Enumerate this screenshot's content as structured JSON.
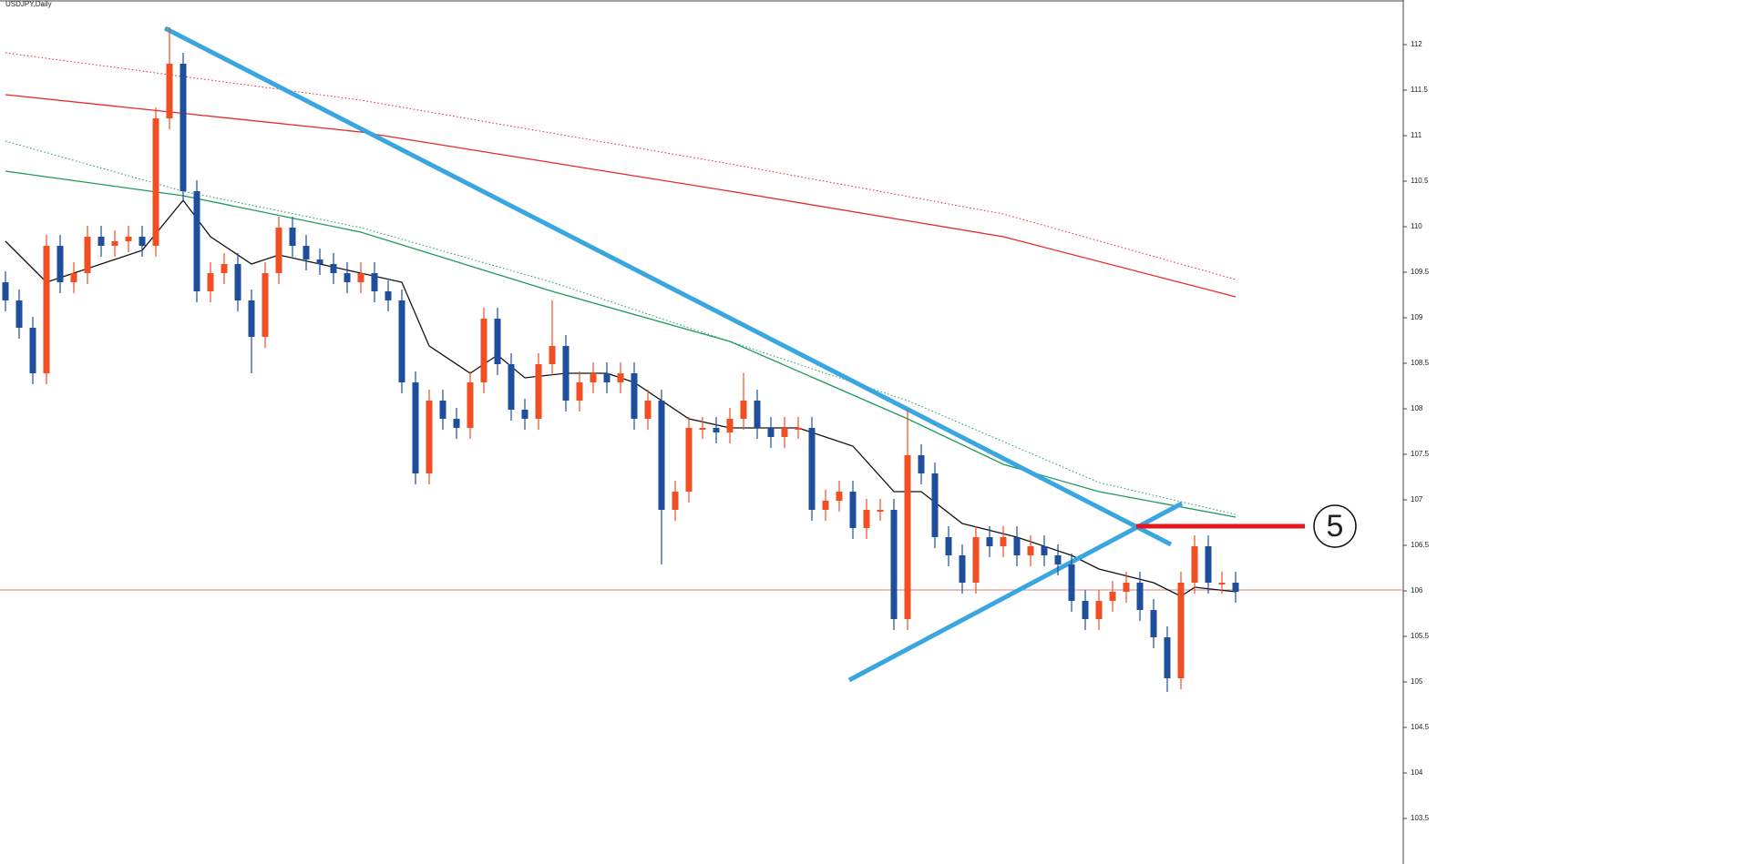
{
  "chart_data": {
    "type": "candlestick",
    "title": "USDJPY,Daily",
    "ylim": [
      103.0,
      112.49
    ],
    "yticks": [
      103.5,
      104,
      104.5,
      105,
      105.5,
      106,
      106.5,
      107,
      107.5,
      108,
      108.5,
      109,
      109.5,
      110,
      110.5,
      111,
      111.5,
      112
    ],
    "up_color": "#f04e23",
    "down_color": "#1f4e9c",
    "open": [
      109.39,
      109.19,
      108.89,
      108.39,
      109.79,
      109.39,
      109.49,
      109.89,
      109.79,
      109.84,
      109.89,
      109.79,
      111.19,
      111.79,
      110.39,
      109.29,
      109.49,
      109.59,
      109.19,
      108.79,
      109.49,
      109.99,
      109.79,
      109.64,
      109.59,
      109.49,
      109.39,
      109.49,
      109.29,
      109.19,
      108.29,
      107.29,
      108.09,
      107.89,
      107.79,
      108.29,
      108.99,
      108.49,
      107.99,
      107.89,
      108.49,
      108.69,
      108.09,
      108.29,
      108.39,
      108.29,
      108.39,
      107.89,
      108.09,
      106.89,
      107.09,
      107.79,
      107.79,
      107.74,
      107.89,
      108.09,
      107.79,
      107.69,
      107.79,
      107.79,
      106.89,
      106.99,
      107.09,
      106.69,
      106.89,
      106.89,
      105.69,
      107.49,
      107.29,
      106.59,
      106.39,
      106.09,
      106.59,
      106.49,
      106.59,
      106.39,
      106.49,
      106.39,
      106.29,
      105.89,
      105.69,
      105.89,
      105.99,
      106.09,
      105.79,
      105.49,
      105.04,
      106.09,
      106.49,
      106.09,
      106.09
    ],
    "high": [
      109.51,
      109.31,
      109.01,
      109.91,
      109.91,
      109.61,
      110.01,
      110.01,
      109.96,
      110.01,
      110.01,
      111.31,
      112.19,
      111.91,
      110.51,
      109.61,
      109.71,
      109.71,
      109.31,
      109.61,
      110.11,
      110.11,
      109.91,
      109.76,
      109.71,
      109.61,
      109.61,
      109.61,
      109.41,
      109.31,
      108.41,
      108.21,
      108.21,
      108.01,
      108.41,
      109.11,
      109.11,
      108.61,
      108.11,
      108.61,
      109.19,
      108.81,
      108.41,
      108.51,
      108.51,
      108.51,
      108.51,
      108.21,
      108.21,
      107.21,
      107.91,
      107.91,
      107.91,
      108.01,
      108.39,
      108.21,
      107.91,
      107.91,
      107.91,
      107.91,
      107.11,
      107.21,
      107.21,
      107.01,
      107.01,
      107.01,
      107.99,
      107.61,
      107.41,
      106.71,
      106.51,
      106.71,
      106.71,
      106.71,
      106.71,
      106.61,
      106.61,
      106.51,
      106.41,
      106.01,
      106.01,
      106.11,
      106.21,
      106.21,
      105.91,
      105.61,
      106.21,
      106.61,
      106.61,
      106.21,
      106.21
    ],
    "low": [
      109.07,
      108.77,
      108.27,
      108.27,
      109.27,
      109.27,
      109.37,
      109.67,
      109.67,
      109.72,
      109.67,
      109.67,
      111.07,
      110.27,
      109.17,
      109.17,
      109.37,
      109.07,
      108.39,
      108.67,
      109.37,
      109.67,
      109.52,
      109.47,
      109.37,
      109.27,
      109.27,
      109.17,
      109.07,
      108.17,
      107.17,
      107.17,
      107.77,
      107.67,
      107.67,
      108.17,
      108.37,
      107.87,
      107.77,
      107.77,
      108.37,
      107.97,
      107.97,
      108.17,
      108.17,
      108.17,
      107.77,
      107.77,
      106.29,
      106.77,
      106.97,
      107.67,
      107.62,
      107.62,
      107.77,
      107.67,
      107.57,
      107.57,
      107.67,
      106.77,
      106.77,
      106.87,
      106.57,
      106.57,
      106.77,
      105.57,
      105.57,
      107.17,
      106.47,
      106.27,
      105.97,
      105.97,
      106.37,
      106.37,
      106.27,
      106.27,
      106.27,
      106.17,
      105.77,
      105.57,
      105.57,
      105.77,
      105.87,
      105.67,
      105.37,
      104.89,
      104.92,
      105.97,
      105.97,
      105.97,
      105.87
    ],
    "close": [
      109.19,
      108.89,
      108.39,
      109.79,
      109.39,
      109.49,
      109.89,
      109.79,
      109.84,
      109.89,
      109.79,
      111.19,
      111.79,
      110.39,
      109.29,
      109.49,
      109.59,
      109.19,
      108.79,
      109.49,
      109.99,
      109.79,
      109.64,
      109.59,
      109.49,
      109.39,
      109.49,
      109.29,
      109.19,
      108.29,
      107.29,
      108.09,
      107.89,
      107.79,
      108.29,
      108.99,
      108.49,
      107.99,
      107.89,
      108.49,
      108.69,
      108.09,
      108.29,
      108.39,
      108.29,
      108.39,
      107.89,
      108.09,
      106.89,
      107.09,
      107.79,
      107.79,
      107.74,
      107.89,
      108.09,
      107.79,
      107.69,
      107.79,
      107.79,
      106.89,
      106.99,
      107.09,
      106.69,
      106.89,
      106.89,
      105.69,
      107.49,
      107.29,
      106.59,
      106.39,
      106.09,
      106.59,
      106.49,
      106.59,
      106.39,
      106.49,
      106.39,
      106.29,
      105.89,
      105.69,
      105.89,
      105.99,
      106.09,
      105.79,
      105.49,
      105.04,
      106.09,
      106.49,
      106.09,
      106.09,
      105.99
    ],
    "lines": [
      {
        "color": "#e8262b",
        "style": "dotted",
        "x": [
          0,
          26,
          53,
          73,
          90
        ],
        "values": [
          111.91,
          111.39,
          110.69,
          110.14,
          109.42
        ]
      },
      {
        "color": "#e8262b",
        "style": "solid",
        "x": [
          0,
          26,
          53,
          73,
          90
        ],
        "values": [
          111.45,
          111.04,
          110.39,
          109.89,
          109.23
        ]
      },
      {
        "color": "#1a9a5a",
        "style": "dotted",
        "x": [
          0,
          13,
          26,
          40,
          53,
          66,
          80,
          90
        ],
        "values": [
          110.94,
          110.39,
          109.99,
          109.39,
          108.74,
          108.09,
          107.19,
          106.84
        ]
      },
      {
        "color": "#1a9a5a",
        "style": "solid",
        "x": [
          0,
          13,
          26,
          40,
          53,
          66,
          73,
          80,
          90
        ],
        "values": [
          110.61,
          110.34,
          109.94,
          109.29,
          108.74,
          107.89,
          107.39,
          107.09,
          106.81
        ]
      },
      {
        "color": "#111111",
        "style": "solid",
        "x": [
          0,
          3,
          6,
          10,
          13,
          15,
          18,
          20,
          23,
          26,
          29,
          31,
          34,
          36,
          38,
          41,
          44,
          46,
          50,
          53,
          58,
          62,
          65,
          67,
          70,
          74,
          78,
          80,
          84,
          86,
          87,
          90
        ],
        "values": [
          109.84,
          109.39,
          109.54,
          109.74,
          110.29,
          109.89,
          109.59,
          109.69,
          109.59,
          109.49,
          109.39,
          108.69,
          108.39,
          108.59,
          108.34,
          108.39,
          108.39,
          108.29,
          107.89,
          107.79,
          107.79,
          107.59,
          107.09,
          107.09,
          106.74,
          106.59,
          106.39,
          106.24,
          106.09,
          105.94,
          106.04,
          105.99
        ]
      },
      {
        "color": "#3aa6e0",
        "style": "trend",
        "x": [
          11.67,
          85.27
        ],
        "values": [
          112.18,
          106.51
        ]
      },
      {
        "color": "#3aa6e0",
        "style": "trend",
        "x": [
          61.73,
          86.07
        ],
        "values": [
          105.02,
          106.96
        ]
      },
      {
        "color": "#e8161b",
        "style": "level",
        "x": [
          82.73,
          95.07
        ],
        "values": [
          106.71,
          106.71
        ]
      }
    ],
    "bid": 106.01,
    "annotation": "5"
  }
}
